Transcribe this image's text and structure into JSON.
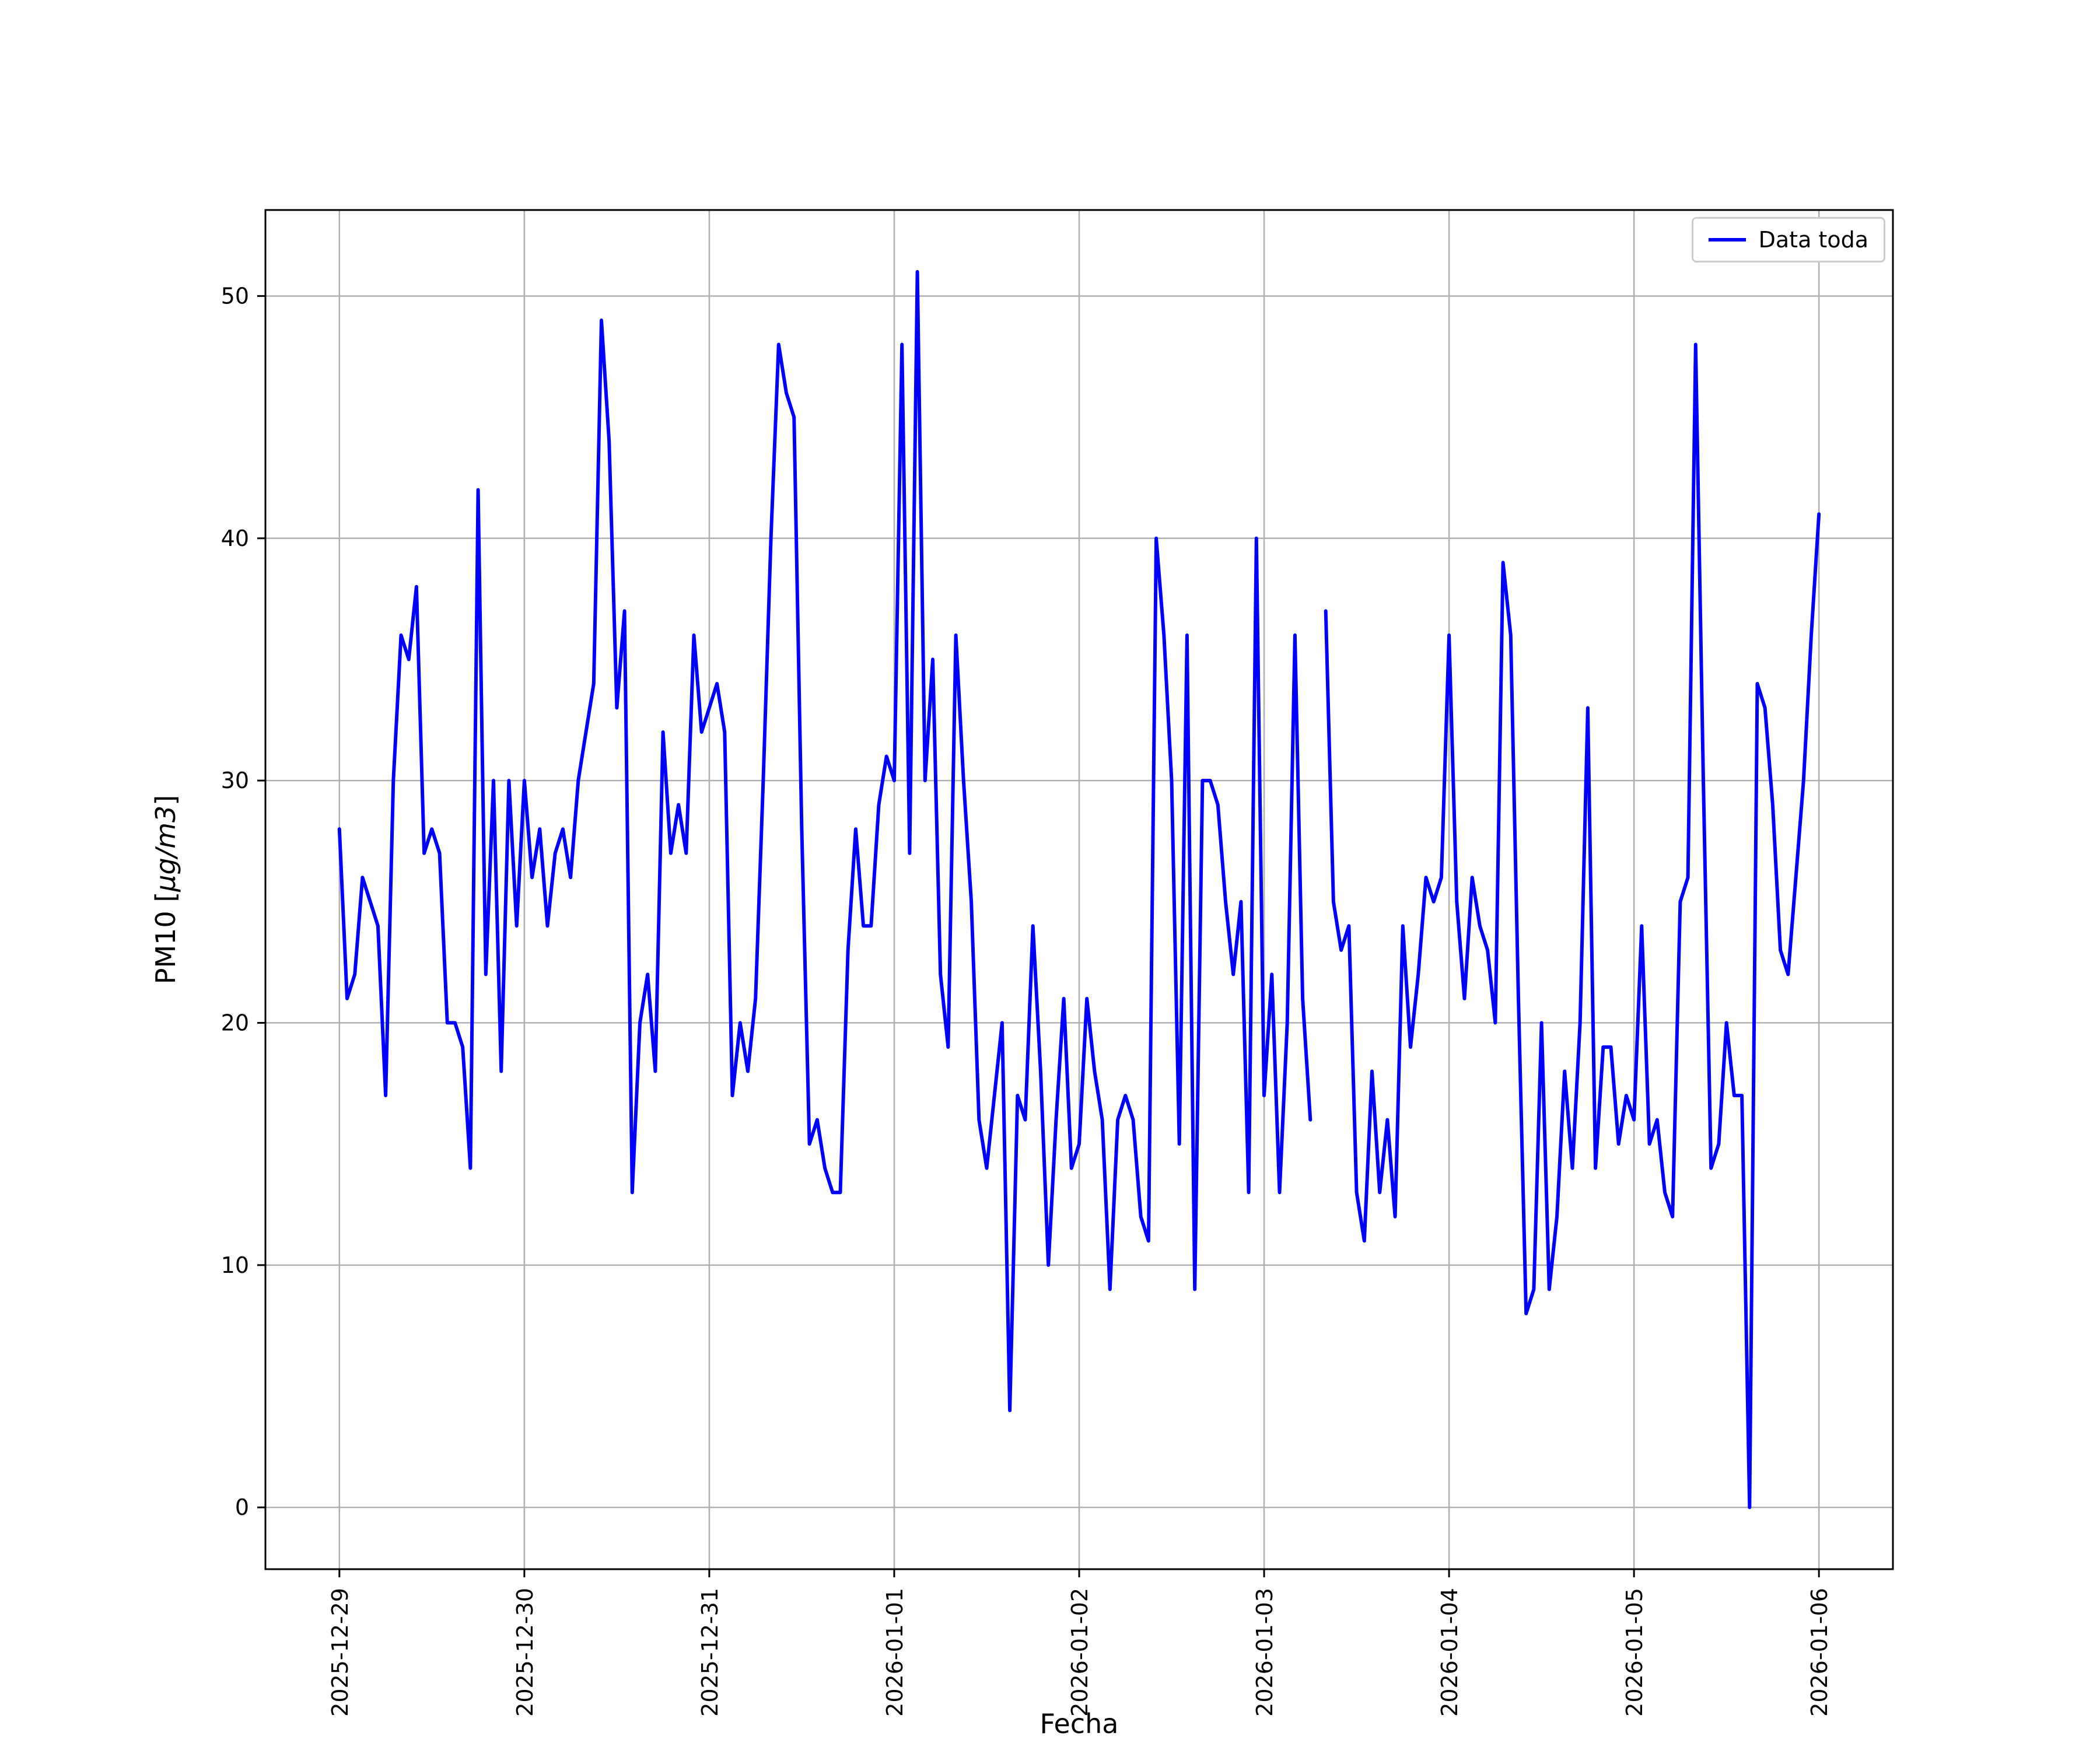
{
  "chart_data": {
    "type": "line",
    "title": "",
    "xlabel": "Fecha",
    "ylabel": "PM10 [μg/m3]",
    "grid": true,
    "legend_position": "upper right",
    "x_ticks": [
      {
        "hour": 0,
        "label": "2025-12-29"
      },
      {
        "hour": 24,
        "label": "2025-12-30"
      },
      {
        "hour": 48,
        "label": "2025-12-31"
      },
      {
        "hour": 72,
        "label": "2026-01-01"
      },
      {
        "hour": 96,
        "label": "2026-01-02"
      },
      {
        "hour": 120,
        "label": "2026-01-03"
      },
      {
        "hour": 144,
        "label": "2026-01-04"
      },
      {
        "hour": 168,
        "label": "2026-01-05"
      },
      {
        "hour": 192,
        "label": "2026-01-06"
      }
    ],
    "y_ticks": [
      0,
      10,
      20,
      30,
      40,
      50
    ],
    "xlim_hours": [
      -9.6,
      201.6
    ],
    "ylim": [
      -2.55,
      53.55
    ],
    "series": [
      {
        "name": "Data toda",
        "color": "#0000ff",
        "x_start": "2025-12-29 00:00",
        "x_step_hours": 1,
        "values": [
          28,
          21,
          22,
          26,
          25,
          24,
          17,
          30,
          36,
          35,
          38,
          27,
          28,
          27,
          20,
          20,
          19,
          14,
          42,
          22,
          30,
          18,
          30,
          24,
          30,
          26,
          28,
          24,
          27,
          28,
          26,
          30,
          32,
          34,
          49,
          44,
          33,
          37,
          13,
          20,
          22,
          18,
          32,
          27,
          29,
          27,
          36,
          32,
          33,
          34,
          32,
          17,
          20,
          18,
          21,
          30,
          40,
          48,
          46,
          45,
          28,
          15,
          16,
          14,
          13,
          13,
          23,
          28,
          24,
          24,
          29,
          31,
          30,
          48,
          27,
          51,
          30,
          35,
          22,
          19,
          36,
          30,
          25,
          16,
          14,
          17,
          20,
          4,
          17,
          16,
          24,
          18,
          10,
          16,
          21,
          14,
          15,
          21,
          18,
          16,
          9,
          16,
          17,
          16,
          12,
          11,
          40,
          36,
          30,
          15,
          36,
          9,
          30,
          30,
          29,
          25,
          22,
          25,
          13,
          40,
          17,
          22,
          13,
          20,
          36,
          21,
          16,
          null,
          37,
          25,
          23,
          24,
          13,
          11,
          18,
          13,
          16,
          12,
          24,
          19,
          22,
          26,
          25,
          26,
          36,
          25,
          21,
          26,
          24,
          23,
          20,
          39,
          36,
          21,
          8,
          9,
          20,
          9,
          12,
          18,
          14,
          20,
          33,
          14,
          19,
          19,
          15,
          17,
          16,
          24,
          15,
          16,
          13,
          12,
          25,
          26,
          48,
          30,
          14,
          15,
          20,
          17,
          17,
          0,
          34,
          33,
          29,
          23,
          22,
          26,
          30,
          36,
          41
        ]
      }
    ]
  }
}
